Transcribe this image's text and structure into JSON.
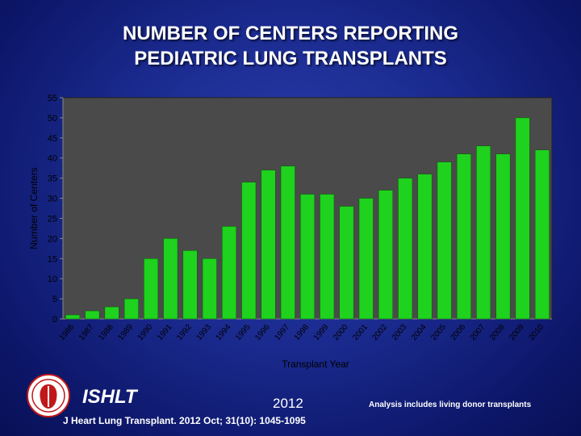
{
  "title_line1": "NUMBER OF CENTERS REPORTING",
  "title_line2": "PEDIATRIC LUNG TRANSPLANTS",
  "footer": {
    "org": "ISHLT",
    "year": "2012",
    "note": "Analysis includes living donor transplants",
    "citation": "J Heart Lung Transplant. 2012 Oct; 31(10): 1045-1095",
    "logo_icon": "ishlt-seal-icon"
  },
  "colors": {
    "bar": "#1ed21e",
    "plot_bg": "#4a4a4a",
    "text": "#ffffff",
    "axis_text": "#000000"
  },
  "chart_data": {
    "type": "bar",
    "title": "NUMBER OF CENTERS REPORTING PEDIATRIC LUNG TRANSPLANTS",
    "xlabel": "Transplant Year",
    "ylabel": "Number of Centers",
    "ylim": [
      0,
      55
    ],
    "yticks": [
      0,
      5,
      10,
      15,
      20,
      25,
      30,
      35,
      40,
      45,
      50,
      55
    ],
    "grid": false,
    "categories": [
      "1986",
      "1987",
      "1988",
      "1989",
      "1990",
      "1991",
      "1992",
      "1993",
      "1994",
      "1995",
      "1996",
      "1997",
      "1998",
      "1999",
      "2000",
      "2001",
      "2002",
      "2003",
      "2004",
      "2005",
      "2006",
      "2007",
      "2008",
      "2009",
      "2010"
    ],
    "values": [
      1,
      2,
      3,
      5,
      15,
      20,
      17,
      15,
      23,
      34,
      37,
      38,
      31,
      31,
      28,
      30,
      32,
      35,
      36,
      39,
      41,
      43,
      41,
      50,
      42
    ]
  }
}
